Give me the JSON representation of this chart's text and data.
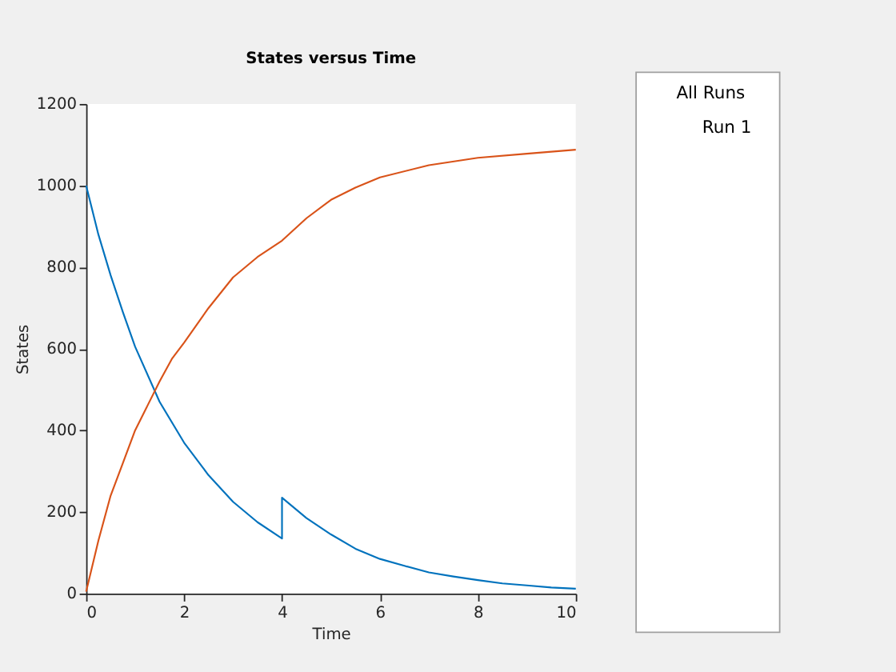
{
  "chart_data": {
    "type": "line",
    "title": "States versus Time",
    "xlabel": "Time",
    "ylabel": "States",
    "xlim": [
      0,
      10
    ],
    "xticks": [
      0,
      2,
      4,
      6,
      8,
      10
    ],
    "ylim": [
      0,
      1200
    ],
    "yticks": [
      0,
      200,
      400,
      600,
      800,
      1000,
      1200
    ],
    "grid": false,
    "annotations": [
      "All Runs",
      "Run 1"
    ],
    "series": [
      {
        "color": "#0072bd",
        "x": [
          0,
          0.25,
          0.5,
          0.75,
          1,
          1.5,
          2,
          2.5,
          3,
          3.5,
          4,
          4,
          4.5,
          5,
          5.5,
          6,
          6.5,
          7,
          7.5,
          8,
          8.5,
          9,
          9.5,
          10
        ],
        "values": [
          1000,
          880,
          780,
          690,
          605,
          470,
          370,
          290,
          225,
          175,
          135,
          235,
          185,
          145,
          110,
          85,
          68,
          52,
          42,
          33,
          25,
          20,
          15,
          12
        ]
      },
      {
        "color": "#d95319",
        "x": [
          0,
          0.25,
          0.5,
          0.75,
          1,
          1.25,
          1.5,
          1.75,
          2,
          2.5,
          3,
          3.5,
          4,
          4.5,
          5,
          5.5,
          6,
          7,
          8,
          9,
          10
        ],
        "values": [
          5,
          130,
          240,
          320,
          400,
          460,
          520,
          575,
          615,
          700,
          775,
          825,
          865,
          920,
          965,
          995,
          1020,
          1050,
          1068,
          1078,
          1088
        ]
      }
    ]
  }
}
